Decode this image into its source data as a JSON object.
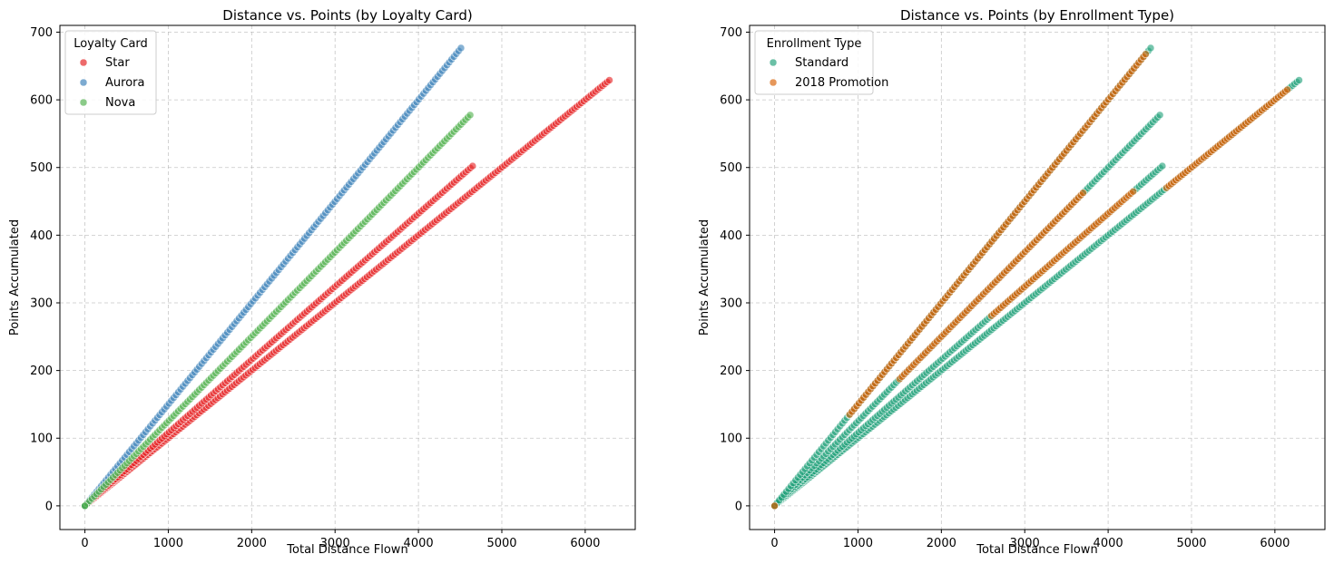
{
  "chart_data": [
    {
      "type": "scatter",
      "title": "Distance vs. Points (by Loyalty Card)",
      "xlabel": "Total Distance Flown",
      "ylabel": "Points Accumulated",
      "xlim": [
        -300,
        6600
      ],
      "ylim": [
        -35,
        710
      ],
      "xticks": [
        0,
        1000,
        2000,
        3000,
        4000,
        5000,
        6000
      ],
      "yticks": [
        0,
        100,
        200,
        300,
        400,
        500,
        600,
        700
      ],
      "grid": true,
      "legend": {
        "title": "Loyalty Card",
        "placement": "top-left"
      },
      "series": [
        {
          "name": "Star",
          "color": "#e41a1c",
          "ranges": [
            [
              0,
              6290,
              0.1
            ],
            [
              0,
              4650,
              0.108
            ]
          ]
        },
        {
          "name": "Aurora",
          "color": "#377eb8",
          "ranges": [
            [
              0,
              4510,
              0.15
            ]
          ]
        },
        {
          "name": "Nova",
          "color": "#4daf4a",
          "ranges": [
            [
              0,
              4620,
              0.125
            ]
          ]
        }
      ]
    },
    {
      "type": "scatter",
      "title": "Distance vs. Points (by Enrollment Type)",
      "xlabel": "Total Distance Flown",
      "ylabel": "Points Accumulated",
      "xlim": [
        -300,
        6600
      ],
      "ylim": [
        -35,
        710
      ],
      "xticks": [
        0,
        1000,
        2000,
        3000,
        4000,
        5000,
        6000
      ],
      "yticks": [
        0,
        100,
        200,
        300,
        400,
        500,
        600,
        700
      ],
      "grid": true,
      "legend": {
        "title": "Enrollment Type",
        "placement": "top-left"
      },
      "series": [
        {
          "name": "Standard",
          "color": "#1b9e77",
          "ranges": [
            [
              0,
              6290,
              0.1
            ],
            [
              0,
              4650,
              0.108
            ],
            [
              0,
              4620,
              0.125
            ],
            [
              0,
              4510,
              0.15
            ]
          ]
        },
        {
          "name": "2018 Promotion",
          "color": "#d95f02",
          "ranges": [
            [
              900,
              4450,
              0.15
            ],
            [
              1500,
              3700,
              0.125
            ],
            [
              2600,
              4300,
              0.108
            ],
            [
              4700,
              6150,
              0.1
            ]
          ]
        }
      ]
    }
  ]
}
